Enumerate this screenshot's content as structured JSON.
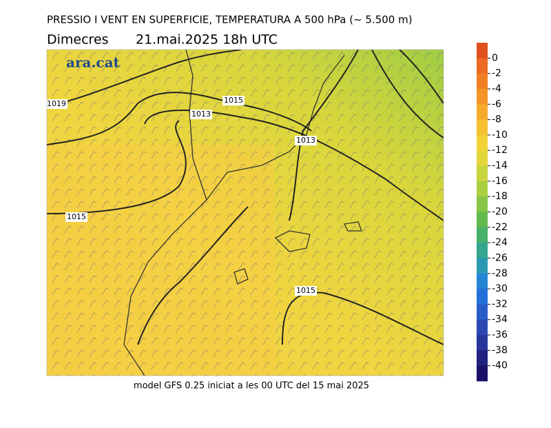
{
  "header": {
    "title": "PRESSIO I VENT EN SUPERFICIE, TEMPERATURA A 500 hPa (~ 5.500 m)",
    "date_label": "Dimecres",
    "date": "21.mai.2025 18h UTC"
  },
  "logo": "ara.cat",
  "footer": "model GFS 0.25 iniciat a les 00 UTC del 15 mai 2025",
  "isobar_labels": [
    1019,
    1015,
    1013,
    1013,
    1015,
    1015
  ],
  "colorbar": {
    "ticks": [
      0,
      -2,
      -4,
      -6,
      -8,
      -10,
      -12,
      -14,
      -16,
      -18,
      -20,
      -22,
      -24,
      -26,
      -28,
      -30,
      -32,
      -34,
      -36,
      -38,
      -40
    ],
    "colors": [
      "#e0501e",
      "#ec6a22",
      "#f07f24",
      "#f39428",
      "#f5aa2c",
      "#f6c131",
      "#f2d337",
      "#e3d63a",
      "#c9d53c",
      "#a9cf40",
      "#86c545",
      "#62ba4e",
      "#48b06a",
      "#35a68e",
      "#2a9ab2",
      "#2486d4",
      "#2570d8",
      "#2a5cc8",
      "#2b48b2",
      "#28359a",
      "#21237e",
      "#1a1266"
    ]
  }
}
